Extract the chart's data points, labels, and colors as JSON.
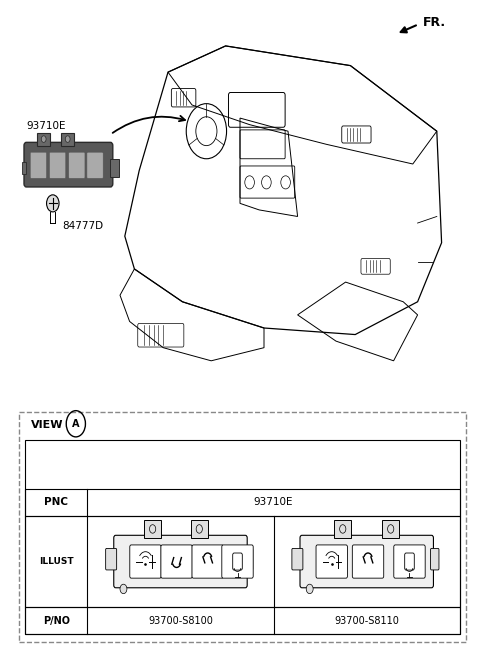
{
  "bg_color": "#ffffff",
  "fr_label": "FR.",
  "label_93710E": "93710E",
  "label_84777D": "84777D",
  "view_label": "VIEW",
  "view_circle_letter": "A",
  "pnc_label": "PNC",
  "pnc_value": "93710E",
  "illust_label": "ILLUST",
  "pno_label": "P/NO",
  "pno_left": "93700-S8100",
  "pno_right": "93700-S8110"
}
